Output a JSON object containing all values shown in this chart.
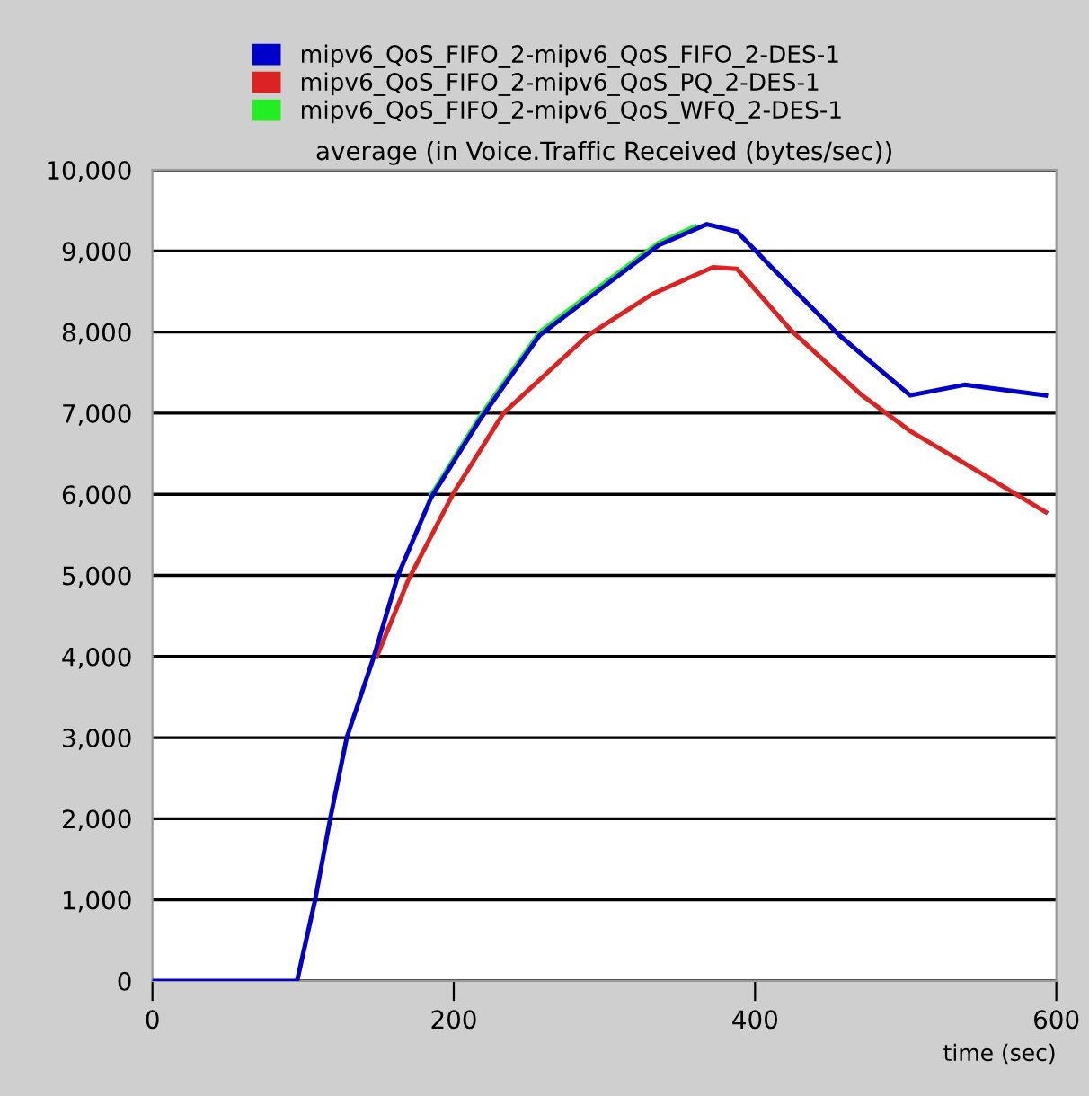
{
  "chart_data": {
    "type": "line",
    "title": "average (in Voice.Traffic Received (bytes/sec))",
    "xlabel": "time (sec)",
    "xlim": [
      0,
      600
    ],
    "xticks": [
      0,
      200,
      400,
      600
    ],
    "ylim": [
      0,
      10000
    ],
    "yticks": [
      {
        "value": 0,
        "label": "0"
      },
      {
        "value": 1000,
        "label": "1,000"
      },
      {
        "value": 2000,
        "label": "2,000"
      },
      {
        "value": 3000,
        "label": "3,000"
      },
      {
        "value": 4000,
        "label": "4,000"
      },
      {
        "value": 5000,
        "label": "5,000"
      },
      {
        "value": 6000,
        "label": "6,000"
      },
      {
        "value": 7000,
        "label": "7,000"
      },
      {
        "value": 8000,
        "label": "8,000"
      },
      {
        "value": 9000,
        "label": "9,000"
      },
      {
        "value": 10000,
        "label": "10,000"
      }
    ],
    "grid": "y",
    "legend": "top",
    "marker": "none",
    "line_style": "solid",
    "series": [
      {
        "name": "mipv6_QoS_FIFO_2-mipv6_QoS_FIFO_2-DES-1",
        "color": "#0000cc",
        "x": [
          0,
          96,
          108,
          118,
          129,
          147,
          163,
          185,
          217,
          257,
          296,
          336,
          368,
          388,
          412,
          456,
          503,
          539,
          593
        ],
        "values": [
          0,
          0,
          1000,
          2000,
          3000,
          4000,
          5000,
          5960,
          6910,
          7960,
          8510,
          9070,
          9330,
          9240,
          8780,
          7960,
          7220,
          7350,
          7220
        ]
      },
      {
        "name": "mipv6_QoS_FIFO_2-mipv6_QoS_PQ_2-DES-1",
        "color": "#dd2222",
        "x": [
          149,
          170,
          200,
          233,
          289,
          332,
          372,
          388,
          424,
          471,
          503,
          551,
          593
        ],
        "values": [
          4000,
          4950,
          6020,
          7000,
          7960,
          8470,
          8800,
          8780,
          8020,
          7220,
          6780,
          6250,
          5780
        ]
      },
      {
        "name": "mipv6_QoS_FIFO_2-mipv6_QoS_WFQ_2-DES-1",
        "color": "#22ee22",
        "x": [
          185,
          217,
          257,
          296,
          336,
          360
        ],
        "values": [
          5990,
          6950,
          8000,
          8550,
          9100,
          9300
        ]
      }
    ]
  }
}
